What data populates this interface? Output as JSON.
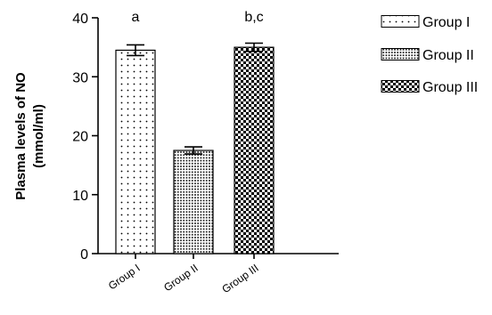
{
  "chart_data": {
    "type": "bar",
    "categories": [
      "Group I",
      "Group II",
      "Group III"
    ],
    "values": [
      34.5,
      17.5,
      35.0
    ],
    "errors": [
      0.9,
      0.6,
      0.7
    ],
    "annotations": [
      "a",
      "",
      "b,c"
    ],
    "ylabel_lines": [
      "Plasma levels of NO",
      "(mmol/ml)"
    ],
    "xlabel": "",
    "ylim": [
      0,
      40
    ],
    "yticks": [
      0,
      10,
      20,
      30,
      40
    ],
    "legend": {
      "placement": "top-right",
      "entries": [
        "Group I",
        "Group II",
        "Group III"
      ]
    },
    "patterns": [
      "sparse-dots",
      "dense-dots",
      "checker"
    ],
    "grid": false
  }
}
